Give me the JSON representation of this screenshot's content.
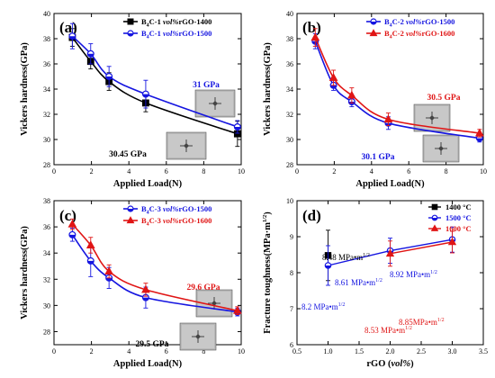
{
  "chart_data": [
    {
      "type": "line",
      "panel_label": "(a)",
      "xlabel": "Applied Load(N)",
      "ylabel": "Vickers hardness(GPa)",
      "xlim": [
        0,
        10
      ],
      "ylim": [
        28,
        40
      ],
      "xticks": [
        0,
        2,
        4,
        6,
        8,
        10
      ],
      "yticks": [
        28,
        30,
        32,
        34,
        36,
        38,
        40
      ],
      "legend_position": "top-right",
      "series": [
        {
          "name": "B4C-1 vol%rGO-1400",
          "color": "#000000",
          "marker": "square",
          "x": [
            0.98,
            1.96,
            2.94,
            4.9,
            9.8
          ],
          "y": [
            38.1,
            36.2,
            34.6,
            32.9,
            30.45
          ],
          "err": [
            0.7,
            0.6,
            0.7,
            0.7,
            1.0
          ]
        },
        {
          "name": "B4C-1 vol%rGO-1500",
          "color": "#1515e0",
          "marker": "half-filled circle",
          "x": [
            0.98,
            1.96,
            2.94,
            4.9,
            9.8
          ],
          "y": [
            38.2,
            36.8,
            35.0,
            33.6,
            31.0
          ],
          "err": [
            1.0,
            0.8,
            0.8,
            1.1,
            0.5
          ]
        }
      ],
      "annotations": [
        "31 GPa",
        "30.45 GPa"
      ]
    },
    {
      "type": "line",
      "panel_label": "(b)",
      "xlabel": "Applied Load(N)",
      "ylabel": "Vickers hardness(GPa)",
      "xlim": [
        0,
        10
      ],
      "ylim": [
        28,
        40
      ],
      "xticks": [
        0,
        2,
        4,
        6,
        8,
        10
      ],
      "yticks": [
        28,
        30,
        32,
        34,
        36,
        38,
        40
      ],
      "legend_position": "top-right",
      "series": [
        {
          "name": "B4C-2 vol%rGO-1500",
          "color": "#1515e0",
          "marker": "half-filled circle",
          "x": [
            0.98,
            1.96,
            2.94,
            4.9,
            9.8
          ],
          "y": [
            37.8,
            34.3,
            33.0,
            31.3,
            30.1
          ],
          "err": [
            0.6,
            0.4,
            0.4,
            0.5,
            0.3
          ]
        },
        {
          "name": "B4C-2 vol%rGO-1600",
          "color": "#e01515",
          "marker": "triangle",
          "x": [
            0.98,
            1.96,
            2.94,
            4.9,
            9.8
          ],
          "y": [
            38.1,
            34.9,
            33.5,
            31.6,
            30.5
          ],
          "err": [
            0.7,
            0.6,
            0.6,
            0.5,
            0.3
          ]
        }
      ],
      "annotations": [
        "30.5 GPa",
        "30.1 GPa"
      ]
    },
    {
      "type": "line",
      "panel_label": "(c)",
      "xlabel": "Applied Load(N)",
      "ylabel": "Vickers hardness(GPa)",
      "xlim": [
        0,
        10
      ],
      "ylim": [
        27,
        38
      ],
      "xticks": [
        0,
        2,
        4,
        6,
        8,
        10
      ],
      "yticks": [
        28,
        30,
        32,
        34,
        36,
        38
      ],
      "legend_position": "top-right",
      "series": [
        {
          "name": "B4C-3 vol%rGO-1500",
          "color": "#1515e0",
          "marker": "half-filled circle",
          "x": [
            0.98,
            1.96,
            2.94,
            4.9,
            9.8
          ],
          "y": [
            35.4,
            33.4,
            32.1,
            30.6,
            29.5
          ],
          "err": [
            0.5,
            1.2,
            0.8,
            0.8,
            0.3
          ]
        },
        {
          "name": "B4C-3 vol%rGO-1600",
          "color": "#e01515",
          "marker": "triangle",
          "x": [
            0.98,
            1.96,
            2.94,
            4.9,
            9.8
          ],
          "y": [
            36.2,
            34.6,
            32.6,
            31.2,
            29.6
          ],
          "err": [
            0.4,
            0.6,
            0.5,
            0.5,
            0.3
          ]
        }
      ],
      "annotations": [
        "29.6 GPa",
        "29.5 GPa"
      ]
    },
    {
      "type": "scatter",
      "panel_label": "(d)",
      "xlabel": "rGO (vol%)",
      "ylabel": "Fracture toughness(MPa·m^1/2)",
      "xlim": [
        0.5,
        3.5
      ],
      "ylim": [
        6,
        10
      ],
      "xticks": [
        0.5,
        1.0,
        1.5,
        2.0,
        2.5,
        3.0,
        3.5
      ],
      "yticks": [
        6,
        7,
        8,
        9,
        10
      ],
      "legend_position": "top-right",
      "series": [
        {
          "name": "1400 °C",
          "color": "#000000",
          "marker": "square",
          "x": [
            1
          ],
          "y": [
            8.48
          ],
          "err": [
            0.7
          ]
        },
        {
          "name": "1500 °C",
          "color": "#1515e0",
          "marker": "half-filled circle",
          "x": [
            1,
            2,
            3
          ],
          "y": [
            8.2,
            8.61,
            8.92
          ],
          "err": [
            0.55,
            0.35,
            0.35
          ]
        },
        {
          "name": "1600 °C",
          "color": "#e01515",
          "marker": "triangle",
          "x": [
            2,
            3
          ],
          "y": [
            8.53,
            8.85
          ],
          "err": [
            0.35,
            0.3
          ]
        }
      ],
      "annotations": [
        {
          "text": "8.48 MPa•m",
          "sup": "1/2",
          "color": "#000000"
        },
        {
          "text": "8.2 MPa•m",
          "sup": "1/2",
          "color": "#1515e0"
        },
        {
          "text": "8.61 MPa•m",
          "sup": "1/2",
          "color": "#1515e0"
        },
        {
          "text": "8.92 MPa•m",
          "sup": "1/2",
          "color": "#1515e0"
        },
        {
          "text": "8.53 MPa•m",
          "sup": "1/2",
          "color": "#e01515"
        },
        {
          "text": "8.85MPa•m",
          "sup": "1/2",
          "color": "#e01515"
        }
      ]
    }
  ]
}
